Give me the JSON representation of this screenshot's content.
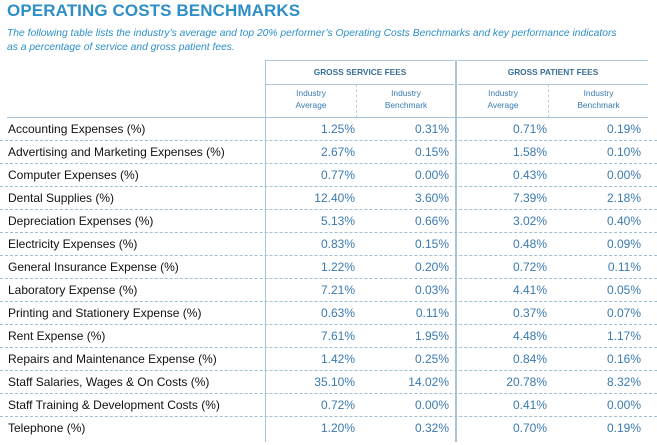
{
  "title": "OPERATING COSTS BENCHMARKS",
  "intro": "The following table lists the industry’s average and top 20% performer’s Operating Costs Benchmarks and key performance indicators as a percentage of service and gross patient fees.",
  "groups": [
    "GROSS SERVICE FEES",
    "GROSS PATIENT FEES"
  ],
  "subheaders": [
    [
      "Industry",
      "Average"
    ],
    [
      "Industry",
      "Benchmark"
    ],
    [
      "Industry",
      "Average"
    ],
    [
      "Industry",
      "Benchmark"
    ]
  ],
  "rows": [
    {
      "label": "Accounting Expenses (%)",
      "values": [
        "1.25%",
        "0.31%",
        "0.71%",
        "0.19%"
      ]
    },
    {
      "label": "Advertising and Marketing Expenses (%)",
      "values": [
        "2.67%",
        "0.15%",
        "1.58%",
        "0.10%"
      ]
    },
    {
      "label": "Computer Expenses (%)",
      "values": [
        "0.77%",
        "0.00%",
        "0.43%",
        "0.00%"
      ]
    },
    {
      "label": "Dental Supplies (%)",
      "values": [
        "12.40%",
        "3.60%",
        "7.39%",
        "2.18%"
      ]
    },
    {
      "label": "Depreciation Expenses (%)",
      "values": [
        "5.13%",
        "0.66%",
        "3.02%",
        "0.40%"
      ]
    },
    {
      "label": "Electricity Expenses (%)",
      "values": [
        "0.83%",
        "0.15%",
        "0.48%",
        "0.09%"
      ]
    },
    {
      "label": "General Insurance Expense (%)",
      "values": [
        "1.22%",
        "0.20%",
        "0.72%",
        "0.11%"
      ]
    },
    {
      "label": "Laboratory Expense (%)",
      "values": [
        "7.21%",
        "0.03%",
        "4.41%",
        "0.05%"
      ]
    },
    {
      "label": "Printing and Stationery Expense (%)",
      "values": [
        "0.63%",
        "0.11%",
        "0.37%",
        "0.07%"
      ]
    },
    {
      "label": "Rent Expense (%)",
      "values": [
        "7.61%",
        "1.95%",
        "4.48%",
        "1.17%"
      ]
    },
    {
      "label": "Repairs and Maintenance Expense (%)",
      "values": [
        "1.42%",
        "0.25%",
        "0.84%",
        "0.16%"
      ]
    },
    {
      "label": "Staff Salaries, Wages & On Costs (%)",
      "values": [
        "35.10%",
        "14.02%",
        "20.78%",
        "8.32%"
      ]
    },
    {
      "label": "Staff Training & Development Costs (%)",
      "values": [
        "0.72%",
        "0.00%",
        "0.41%",
        "0.00%"
      ]
    },
    {
      "label": "Telephone (%)",
      "values": [
        "1.20%",
        "0.32%",
        "0.70%",
        "0.19%"
      ]
    }
  ]
}
